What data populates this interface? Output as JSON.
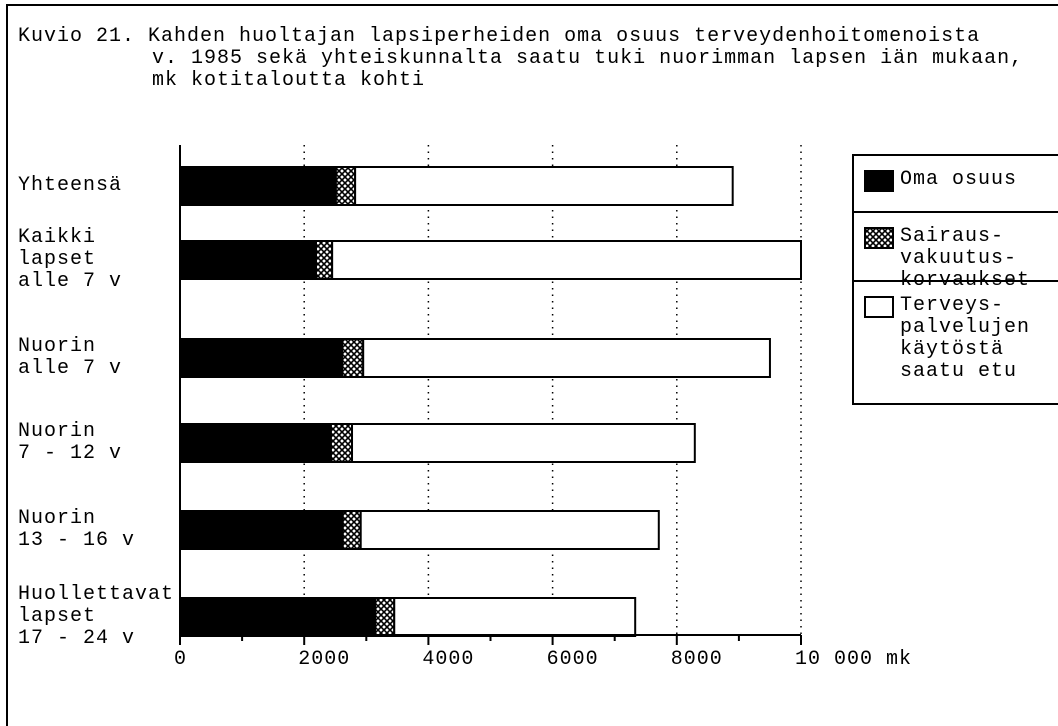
{
  "chart_data": {
    "type": "stacked_barh",
    "title": "Kuvio 21. Kahden huoltajan lapsiperheiden oma osuus terveydenhoitomenoista\nv. 1985 sekä yhteiskunnalta saatu tuki nuorimman lapsen iän mukaan,\nmk kotitaloutta kohti",
    "categories": [
      "Yhteensä",
      "Kaikki\nlapset\nalle 7 v",
      "Nuorin\nalle 7 v",
      "Nuorin\n7 - 12 v",
      "Nuorin\n13 - 16 v",
      "Huollettavat\nlapset\n17 - 24 v"
    ],
    "series": [
      {
        "name": "Oma osuus",
        "color": "#000000",
        "pattern": "solid",
        "values": [
          2510,
          2190,
          2610,
          2430,
          2620,
          3140
        ]
      },
      {
        "name": "Sairaus-\nvakuutus-\nkorvaukset",
        "color": "#000000",
        "pattern": "crosshatch",
        "values": [
          310,
          260,
          340,
          340,
          290,
          310
        ]
      },
      {
        "name": "Terveys-\npalvelujen\nkäytöstä\nsaatu etu",
        "color": "#ffffff",
        "pattern": "solid",
        "values": [
          6080,
          7550,
          6550,
          5520,
          4800,
          3880
        ]
      }
    ],
    "xlim": [
      0,
      10000
    ],
    "xticks": [
      0,
      2000,
      4000,
      6000,
      8000,
      {
        "value": 10000,
        "label": "10 000 mk"
      }
    ],
    "xminorticks": [
      1000,
      3000,
      5000,
      7000,
      9000
    ],
    "grid": "dotted",
    "legend": "upper right"
  }
}
